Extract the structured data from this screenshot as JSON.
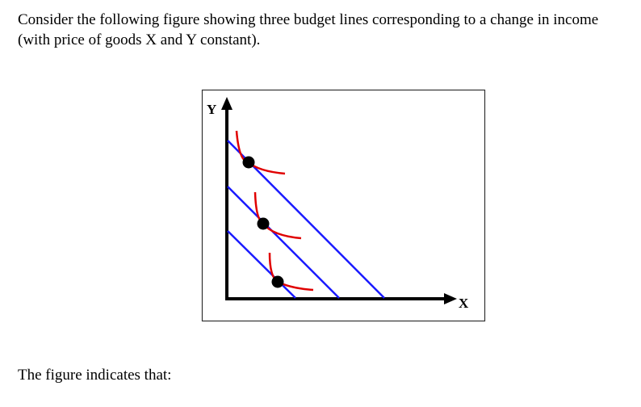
{
  "question": {
    "lines": [
      "Consider the following figure showing three budget lines corresponding to a change in income",
      "(with price of goods X and Y constant)."
    ]
  },
  "figure": {
    "y_label": "Y",
    "x_label": "X"
  },
  "prompt": "The figure indicates that:"
}
